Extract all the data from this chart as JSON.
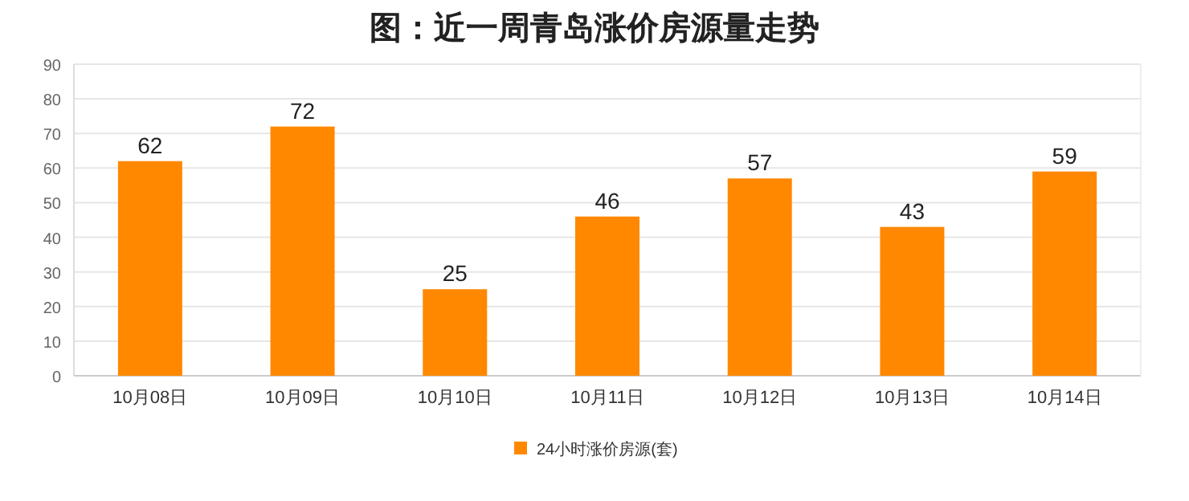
{
  "chart_data": {
    "type": "bar",
    "title": "图：近一周青岛涨价房源量走势",
    "categories": [
      "10月08日",
      "10月09日",
      "10月10日",
      "10月11日",
      "10月12日",
      "10月13日",
      "10月14日"
    ],
    "series": [
      {
        "name": "24小时涨价房源(套)",
        "color": "#ff8800",
        "values": [
          62,
          72,
          25,
          46,
          57,
          43,
          59
        ]
      }
    ],
    "ylim": [
      0,
      90
    ],
    "yticks": [
      0,
      10,
      20,
      30,
      40,
      50,
      60,
      70,
      80,
      90
    ],
    "grid": "y",
    "legend": "bottom",
    "data_labels": true
  }
}
